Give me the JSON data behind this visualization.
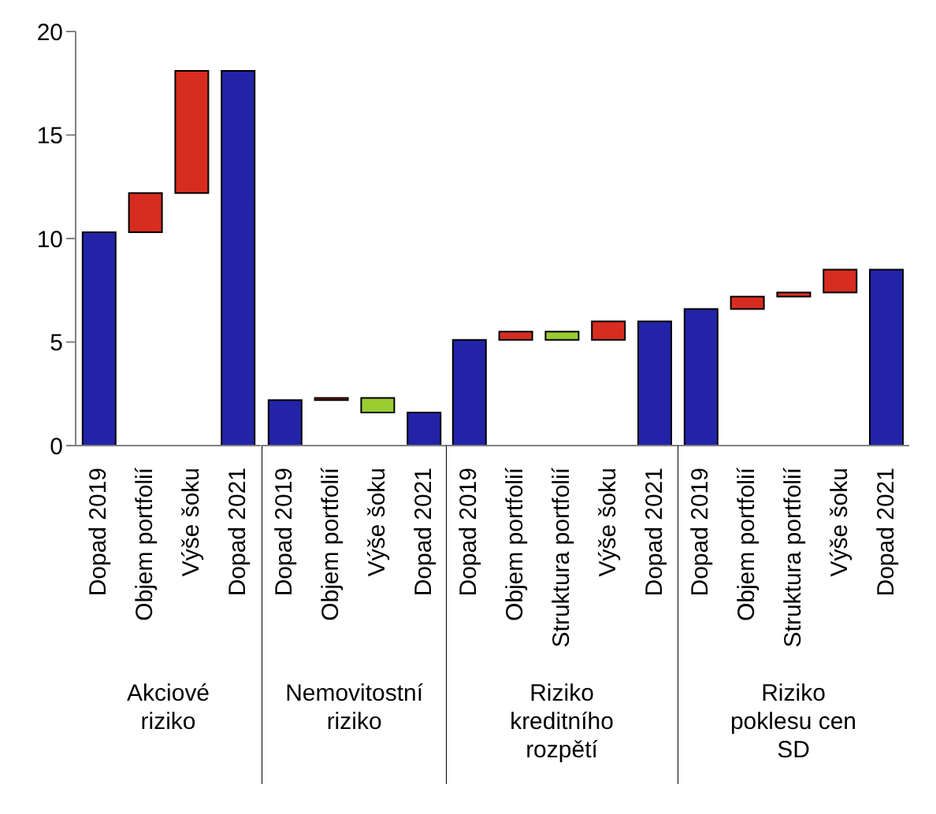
{
  "chart_data": [
    {
      "type": "bar",
      "categories": [
        "Dopad 2019",
        "Objem portfolií",
        "Výše šoku",
        "Dopad 2021"
      ],
      "values": [
        10.3,
        1.9,
        5.9,
        18.1
      ],
      "base": [
        0,
        10.3,
        12.2,
        0
      ],
      "colors": [
        "#2323a8",
        "#d62d20",
        "#d62d20",
        "#2323a8"
      ],
      "xlabel": "Akciové riziko",
      "ylim": [
        0,
        20
      ],
      "yticks": [
        0,
        5,
        10,
        15,
        20
      ]
    },
    {
      "type": "bar",
      "categories": [
        "Dopad 2019",
        "Objem portfolií",
        "Výše šoku",
        "Dopad 2021"
      ],
      "values": [
        2.2,
        0.1,
        -0.7,
        1.6
      ],
      "base": [
        0,
        2.2,
        2.3,
        0
      ],
      "colors": [
        "#2323a8",
        "#d62d20",
        "#9acd32",
        "#2323a8"
      ],
      "xlabel": "Nemovitostní riziko",
      "ylim": [
        0,
        20
      ],
      "yticks": [
        0,
        5,
        10,
        15,
        20
      ],
      "tick_labels": "x"
    },
    {
      "type": "bar",
      "categories": [
        "Dopad 2019",
        "Objem portfolií",
        "Struktura portfolií",
        "Výše šoku",
        "Dopad 2021"
      ],
      "values": [
        5.1,
        0.4,
        -0.4,
        0.9,
        6.0
      ],
      "base": [
        0,
        5.1,
        5.5,
        5.1,
        0
      ],
      "colors": [
        "#2323a8",
        "#d62d20",
        "#9acd32",
        "#d62d20",
        "#2323a8"
      ],
      "xlabel": "Riziko kreditního rozpětí",
      "ylim": [
        0,
        20
      ],
      "yticks": [
        0,
        5,
        10,
        15,
        20
      ],
      "tick_labels": "x"
    },
    {
      "type": "bar",
      "categories": [
        "Dopad 2019",
        "Objem portfolií",
        "Struktura portfolií",
        "Výše šoku",
        "Dopad 2021"
      ],
      "values": [
        6.6,
        0.6,
        0.2,
        1.1,
        8.5
      ],
      "base": [
        0,
        6.6,
        7.2,
        7.4,
        0
      ],
      "colors": [
        "#2323a8",
        "#d62d20",
        "#d62d20",
        "#d62d20",
        "#2323a8"
      ],
      "xlabel": "Riziko poklesu cen SD",
      "ylim": [
        0,
        20
      ],
      "yticks": [
        0,
        5,
        10,
        15,
        20
      ],
      "tick_labels": "x"
    }
  ]
}
